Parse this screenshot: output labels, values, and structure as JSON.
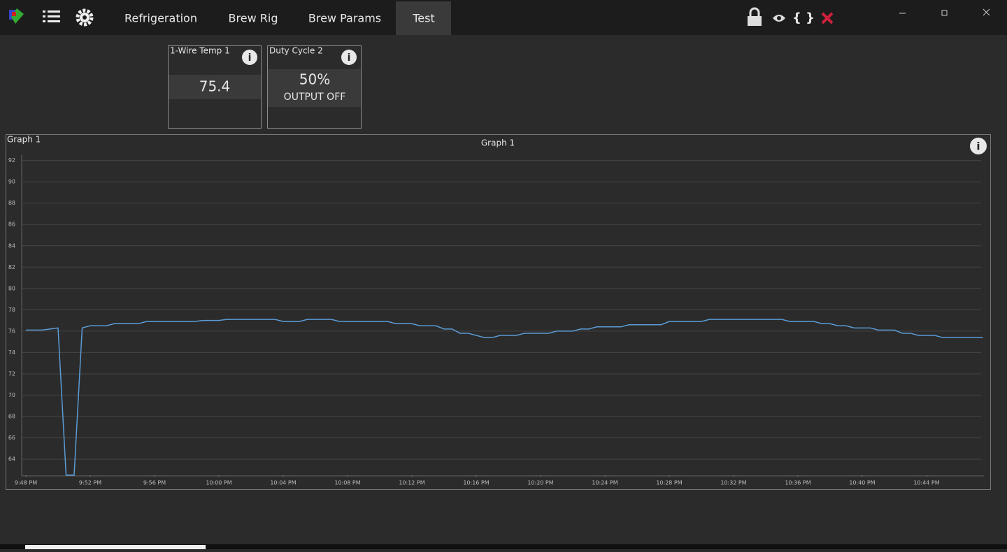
{
  "nav": {
    "tabs": [
      "Refrigeration",
      "Brew Rig",
      "Brew Params",
      "Test"
    ],
    "active": "Test"
  },
  "widgets": [
    {
      "title": "1-Wire Temp 1",
      "value": "75.4"
    },
    {
      "title": "Duty Cycle 2",
      "value": "50%",
      "status": "OUTPUT OFF"
    }
  ],
  "graph_panel": {
    "title": "Graph 1"
  },
  "chart_data": {
    "type": "line",
    "title": "Graph 1",
    "color": "#5b9bd5",
    "grid": true,
    "values": [
      76.1,
      76.1,
      76.1,
      76.2,
      76.3,
      62.5,
      62.5,
      76.3,
      76.5,
      76.5,
      76.5,
      76.7,
      76.7,
      76.7,
      76.7,
      76.9,
      76.9,
      76.9,
      76.9,
      76.9,
      76.9,
      76.9,
      77.0,
      77.0,
      77.0,
      77.1,
      77.1,
      77.1,
      77.1,
      77.1,
      77.1,
      77.1,
      76.9,
      76.9,
      76.9,
      77.1,
      77.1,
      77.1,
      77.1,
      76.9,
      76.9,
      76.9,
      76.9,
      76.9,
      76.9,
      76.9,
      76.7,
      76.7,
      76.7,
      76.5,
      76.5,
      76.5,
      76.2,
      76.2,
      75.8,
      75.8,
      75.6,
      75.4,
      75.4,
      75.6,
      75.6,
      75.6,
      75.8,
      75.8,
      75.8,
      75.8,
      76.0,
      76.0,
      76.0,
      76.2,
      76.2,
      76.4,
      76.4,
      76.4,
      76.4,
      76.6,
      76.6,
      76.6,
      76.6,
      76.6,
      76.9,
      76.9,
      76.9,
      76.9,
      76.9,
      77.1,
      77.1,
      77.1,
      77.1,
      77.1,
      77.1,
      77.1,
      77.1,
      77.1,
      77.1,
      76.9,
      76.9,
      76.9,
      76.9,
      76.7,
      76.7,
      76.5,
      76.5,
      76.3,
      76.3,
      76.3,
      76.1,
      76.1,
      76.1,
      75.8,
      75.8,
      75.6,
      75.6,
      75.6,
      75.4,
      75.4,
      75.4,
      75.4,
      75.4,
      75.4
    ],
    "xticks": [
      "9:48 PM",
      "9:52 PM",
      "9:56 PM",
      "10:00 PM",
      "10:04 PM",
      "10:08 PM",
      "10:12 PM",
      "10:16 PM",
      "10:20 PM",
      "10:24 PM",
      "10:28 PM",
      "10:32 PM",
      "10:36 PM",
      "10:40 PM",
      "10:44 PM"
    ],
    "ylim": [
      62.5,
      92.5
    ],
    "yticks": [
      64,
      66,
      68,
      70,
      72,
      74,
      76,
      78,
      80,
      82,
      84,
      86,
      88,
      90,
      92
    ]
  }
}
